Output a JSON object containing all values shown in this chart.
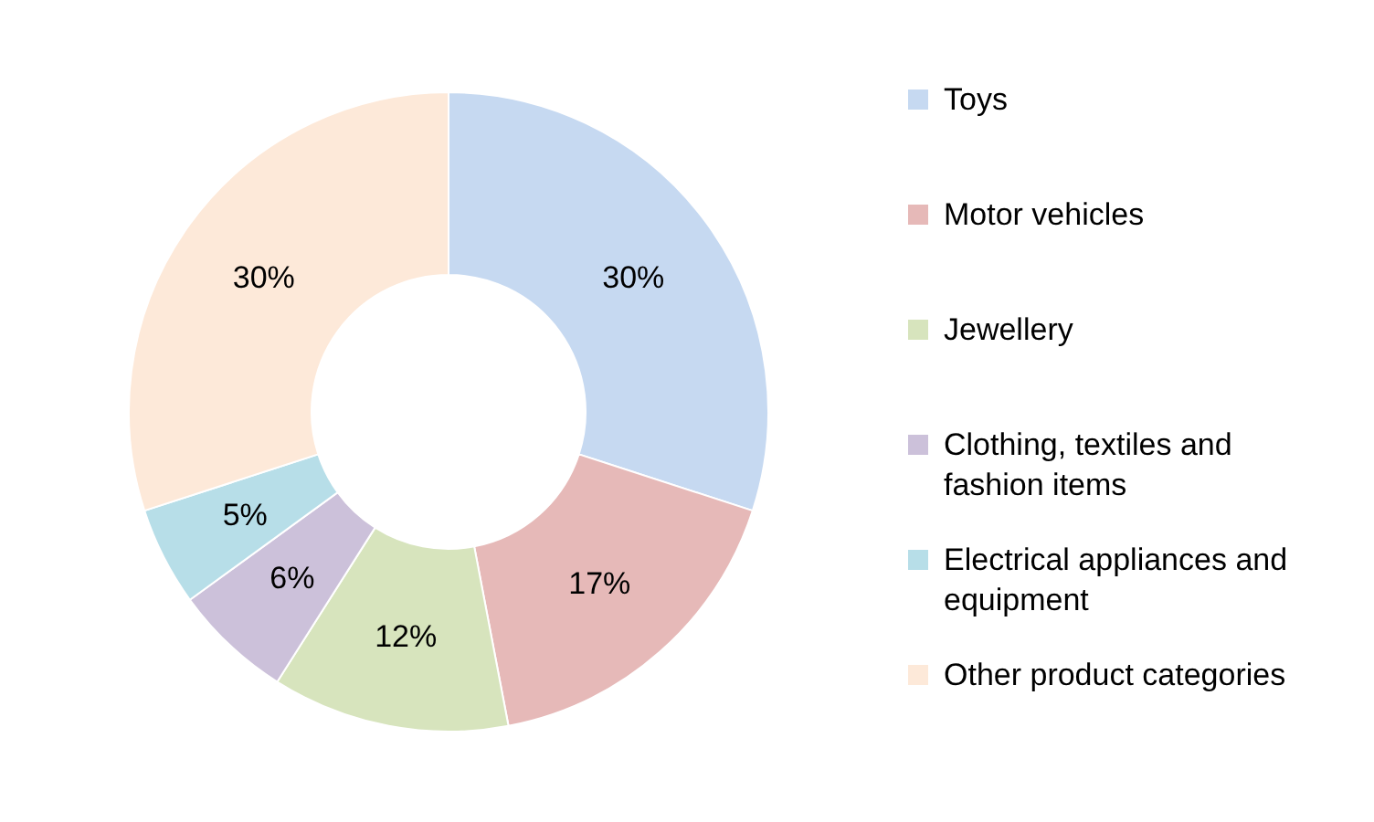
{
  "chart_data": {
    "type": "donut",
    "categories": [
      "Toys",
      "Motor vehicles",
      "Jewellery",
      "Clothing, textiles and fashion items",
      "Electrical appliances and equipment",
      "Other product categories"
    ],
    "values": [
      30,
      17,
      12,
      6,
      5,
      30
    ],
    "colors": [
      "#c6d9f1",
      "#e6b9b8",
      "#d7e4bd",
      "#ccc1da",
      "#b7dee8",
      "#fde9d9"
    ],
    "value_labels": [
      "30%",
      "17%",
      "12%",
      "6%",
      "5%",
      "30%"
    ],
    "legend": "right"
  }
}
